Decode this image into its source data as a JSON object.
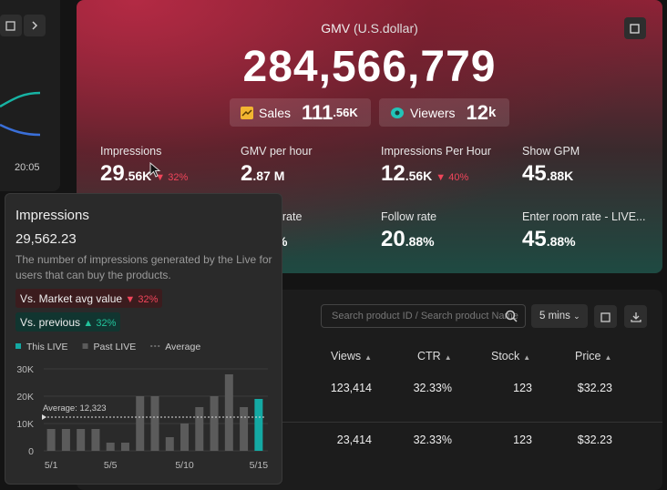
{
  "left_panel": {
    "time_label": "20:05"
  },
  "gmv": {
    "title": "GMV",
    "unit": "(U.S.dollar)",
    "value": "284,566,779",
    "sales": {
      "label": "Sales",
      "value": "111",
      "unit": ".56K"
    },
    "viewers": {
      "label": "Viewers",
      "value": "12",
      "unit": "k"
    }
  },
  "metrics": [
    {
      "label": "Impressions",
      "value": "29",
      "unit": ".56K",
      "change": "32%"
    },
    {
      "label": "GMV per hour",
      "value": "2",
      "unit": ".87 M"
    },
    {
      "label": "Impressions Per Hour",
      "value": "12",
      "unit": ".56K",
      "change": "40%"
    },
    {
      "label": "Show GPM",
      "value": "45",
      "unit": ".88K"
    },
    {
      "label": "nt rate",
      "unit": "%"
    },
    {
      "label": "Follow rate",
      "value": "20",
      "unit": ".88%"
    },
    {
      "label": "Enter room rate - LIVE...",
      "value": "45",
      "unit": ".88%"
    }
  ],
  "table": {
    "search_placeholder": "Search product ID / Search product Name",
    "interval": "5 mins",
    "headers": [
      "Views",
      "CTR",
      "Stock",
      "Price"
    ],
    "rows": [
      [
        "123,414",
        "32.33%",
        "123",
        "$32.23"
      ],
      [
        "23,414",
        "32.33%",
        "123",
        "$32.23"
      ]
    ]
  },
  "tooltip": {
    "title": "Impressions",
    "value": "29,562.23",
    "description": "The number of impressions generated by the Live for users that can buy the products.",
    "market": {
      "label": "Vs. Market avg value",
      "change": "32%"
    },
    "previous": {
      "label": "Vs. previous",
      "change": "32%"
    },
    "chart_data": {
      "type": "bar",
      "categories": [
        "5/1",
        null,
        null,
        null,
        "5/5",
        null,
        null,
        null,
        null,
        "5/10",
        null,
        null,
        null,
        null,
        "5/15"
      ],
      "series": [
        {
          "name": "This LIVE",
          "color": "#14a9a3",
          "values": [
            null,
            null,
            null,
            null,
            null,
            null,
            null,
            null,
            null,
            null,
            null,
            null,
            null,
            null,
            19000
          ]
        },
        {
          "name": "Past LIVE",
          "color": "#5b5b5b",
          "values": [
            8000,
            8000,
            8000,
            8000,
            3000,
            3000,
            20000,
            20000,
            5000,
            10000,
            16000,
            20000,
            28000,
            16000,
            null
          ]
        }
      ],
      "average": {
        "name": "Average",
        "value": 12323,
        "label": "Average: 12,323"
      },
      "ylim": [
        0,
        30000
      ],
      "yticks": [
        0,
        {
          "value": 10000,
          "label": "10K"
        },
        {
          "value": 20000,
          "label": "20K"
        },
        {
          "value": 30000,
          "label": "30K"
        }
      ],
      "grid": true
    }
  }
}
